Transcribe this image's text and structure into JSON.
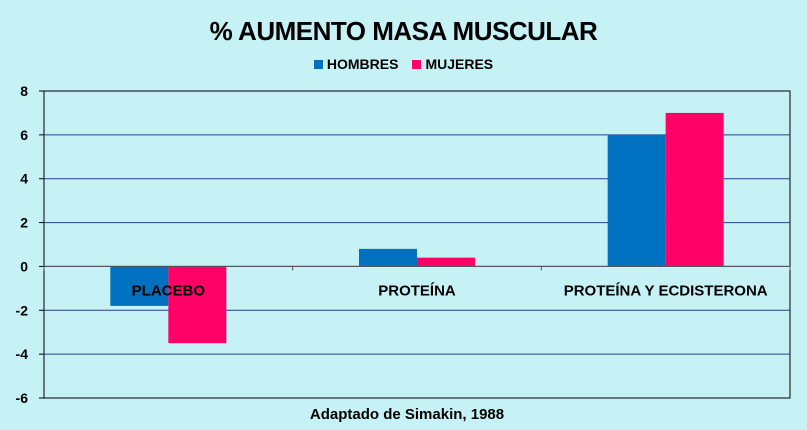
{
  "chart_data": {
    "type": "bar",
    "title": "% AUMENTO MASA MUSCULAR",
    "xlabel": "Adaptado de Simakin, 1988",
    "categories": [
      "PLACEBO",
      "PROTEÍNA",
      "PROTEÍNA Y ECDISTERONA"
    ],
    "series": [
      {
        "name": "HOMBRES",
        "values": [
          -1.8,
          0.8,
          6.0
        ],
        "color": "#0070c0"
      },
      {
        "name": "MUJERES",
        "values": [
          -3.5,
          0.4,
          7.0
        ],
        "color": "#ff0066"
      }
    ],
    "ylim": [
      -6,
      8
    ],
    "yticks": [
      8,
      6,
      4,
      2,
      0,
      -2,
      -4,
      -6
    ],
    "grid": true,
    "legend_position": "top"
  }
}
